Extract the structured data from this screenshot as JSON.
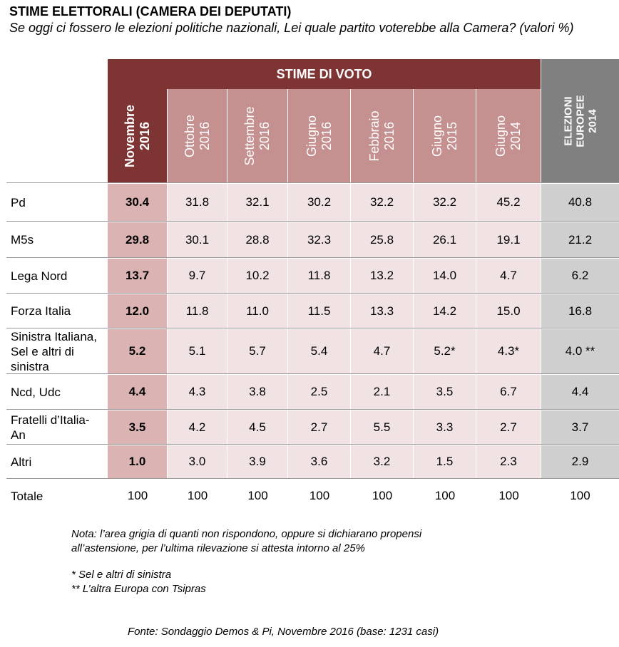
{
  "title": "STIME ELETTORALI (CAMERA DEI DEPUTATI)",
  "subtitle": "Se oggi ci fossero le elezioni politiche nazionali, Lei quale partito voterebbe alla Camera? (valori %)",
  "colors": {
    "header_dark": "#7f3434",
    "header_mid": "#c59090",
    "cell_current": "#dbb3b3",
    "cell_light": "#f1e3e3",
    "cell_gray": "#cfcfcf",
    "header_gray": "#808080"
  },
  "chart_data": {
    "type": "table",
    "group_header": "STIME DI VOTO",
    "columns": [
      "Novembre\n2016",
      "Ottobre\n2016",
      "Settembre\n2016",
      "Giugno\n2016",
      "Febbraio\n2016",
      "Giugno\n2015",
      "Giugno\n2014",
      "ELEZIONI\nEUROPEE\n2014"
    ],
    "rows": [
      {
        "label": "Pd",
        "values": [
          "30.4",
          "31.8",
          "32.1",
          "30.2",
          "32.2",
          "32.2",
          "45.2",
          "40.8"
        ]
      },
      {
        "label": "M5s",
        "values": [
          "29.8",
          "30.1",
          "28.8",
          "32.3",
          "25.8",
          "26.1",
          "19.1",
          "21.2"
        ]
      },
      {
        "label": "Lega Nord",
        "values": [
          "13.7",
          "9.7",
          "10.2",
          "11.8",
          "13.2",
          "14.0",
          "4.7",
          "6.2"
        ]
      },
      {
        "label": "Forza Italia",
        "values": [
          "12.0",
          "11.8",
          "11.0",
          "11.5",
          "13.3",
          "14.2",
          "15.0",
          "16.8"
        ]
      },
      {
        "label": "Sinistra Italiana, Sel e altri di sinistra",
        "values": [
          "5.2",
          "5.1",
          "5.7",
          "5.4",
          "4.7",
          "5.2*",
          "4.3*",
          "4.0 **"
        ]
      },
      {
        "label": "Ncd, Udc",
        "values": [
          "4.4",
          "4.3",
          "3.8",
          "2.5",
          "2.1",
          "3.5",
          "6.7",
          "4.4"
        ]
      },
      {
        "label": "Fratelli d’Italia-An",
        "values": [
          "3.5",
          "4.2",
          "4.5",
          "2.7",
          "5.5",
          "3.3",
          "2.7",
          "3.7"
        ]
      },
      {
        "label": "Altri",
        "values": [
          "1.0",
          "3.0",
          "3.9",
          "3.6",
          "3.2",
          "1.5",
          "2.3",
          "2.9"
        ]
      }
    ],
    "total_row": {
      "label": "Totale",
      "values": [
        "100",
        "100",
        "100",
        "100",
        "100",
        "100",
        "100",
        "100"
      ]
    }
  },
  "notes": {
    "line1": "Nota: l’area grigia di quanti non rispondono, oppure si dichiarano propensi",
    "line2": "all’astensione, per l’ultima rilevazione si attesta intorno al 25%",
    "footnote1": "* Sel e altri di sinistra",
    "footnote2": "** L’altra Europa con Tsipras",
    "source": "Fonte: Sondaggio Demos & Pi, Novembre 2016 (base: 1231 casi)"
  }
}
